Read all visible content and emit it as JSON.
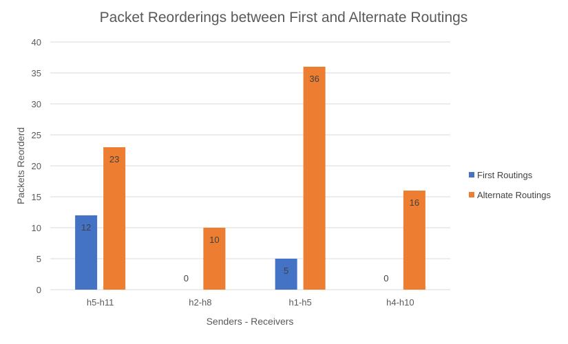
{
  "chart_data": {
    "type": "bar",
    "title": "Packet Reorderings between First and Alternate Routings",
    "xlabel": "Senders - Receivers",
    "ylabel": "Packets Reorderd",
    "categories": [
      "h5-h11",
      "h2-h8",
      "h1-h5",
      "h4-h10"
    ],
    "series": [
      {
        "name": "First Routings",
        "values": [
          12,
          0,
          5,
          0
        ],
        "color": "#4472c4"
      },
      {
        "name": "Alternate Routings",
        "values": [
          23,
          10,
          36,
          16
        ],
        "color": "#ed7d31"
      }
    ],
    "ylim": [
      0,
      40
    ],
    "yticks": [
      0,
      5,
      10,
      15,
      20,
      25,
      30,
      35,
      40
    ],
    "grid": true,
    "legend_position": "right",
    "data_labels": true
  }
}
